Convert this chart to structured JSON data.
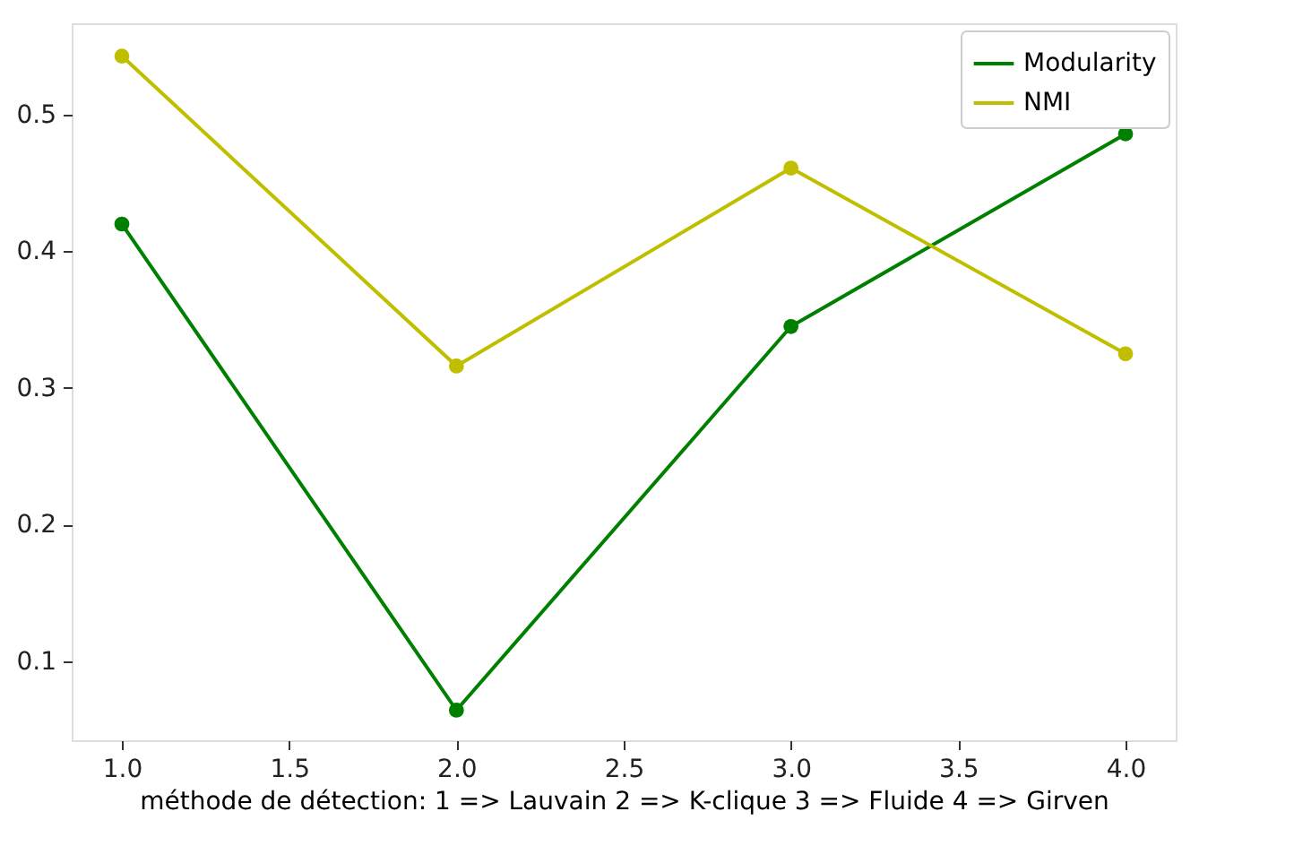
{
  "chart_data": {
    "type": "line",
    "xlabel": "méthode de détection: 1 => Lauvain 2 => K-clique 3 => Fluide 4 => Girven",
    "x": [
      1,
      2,
      3,
      4
    ],
    "series": [
      {
        "name": "Modularity",
        "color": "#008000",
        "values": [
          0.42,
          0.064,
          0.345,
          0.486
        ]
      },
      {
        "name": "NMI",
        "color": "#bfbf00",
        "values": [
          0.543,
          0.316,
          0.461,
          0.325
        ]
      }
    ],
    "xlim": [
      0.85,
      4.15
    ],
    "xticks": [
      {
        "value": 1,
        "label": "1.0"
      },
      {
        "value": 1.5,
        "label": "1.5"
      },
      {
        "value": 2,
        "label": "2.0"
      },
      {
        "value": 2.5,
        "label": "2.5"
      },
      {
        "value": 3,
        "label": "3.0"
      },
      {
        "value": 3.5,
        "label": "3.5"
      },
      {
        "value": 4,
        "label": "4.0"
      }
    ],
    "ylim": [
      0.042,
      0.567
    ],
    "yticks": [
      0.1,
      0.2,
      0.3,
      0.4,
      0.5
    ],
    "grid": false,
    "legend": "top right",
    "marker": "circle",
    "line_style": "solid"
  }
}
